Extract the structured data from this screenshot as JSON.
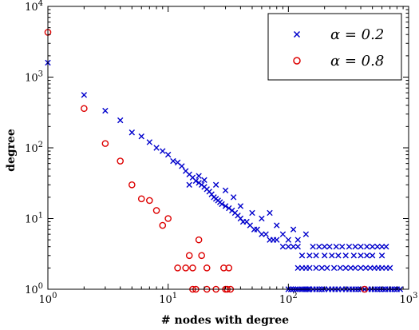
{
  "chart_data": {
    "type": "scatter",
    "title": "",
    "xlabel": "# nodes with degree",
    "ylabel": "degree",
    "xscale": "log",
    "yscale": "log",
    "xlim": [
      1,
      1000
    ],
    "ylim": [
      1,
      10000
    ],
    "grid": false,
    "legend_position": "top-right",
    "x_ticks": [
      {
        "value": 1,
        "base": "10",
        "exp": "0"
      },
      {
        "value": 10,
        "base": "10",
        "exp": "1"
      },
      {
        "value": 100,
        "base": "10",
        "exp": "2"
      },
      {
        "value": 1000,
        "base": "10",
        "exp": "3"
      }
    ],
    "y_ticks": [
      {
        "value": 1,
        "base": "10",
        "exp": "0"
      },
      {
        "value": 10,
        "base": "10",
        "exp": "1"
      },
      {
        "value": 100,
        "base": "10",
        "exp": "2"
      },
      {
        "value": 1000,
        "base": "10",
        "exp": "3"
      },
      {
        "value": 10000,
        "base": "10",
        "exp": "4"
      }
    ],
    "series": [
      {
        "name": "α = 0.2",
        "marker": "x",
        "color": "#0000cc",
        "points": [
          [
            1,
            1600
          ],
          [
            2,
            560
          ],
          [
            3,
            335
          ],
          [
            4,
            245
          ],
          [
            5,
            165
          ],
          [
            6,
            145
          ],
          [
            7,
            120
          ],
          [
            8,
            100
          ],
          [
            9,
            90
          ],
          [
            10,
            80
          ],
          [
            11,
            65
          ],
          [
            12,
            62
          ],
          [
            13,
            55
          ],
          [
            14,
            47
          ],
          [
            15,
            42
          ],
          [
            16,
            38
          ],
          [
            17,
            34
          ],
          [
            18,
            32
          ],
          [
            19,
            30
          ],
          [
            20,
            28
          ],
          [
            21,
            26
          ],
          [
            22,
            24
          ],
          [
            23,
            22
          ],
          [
            24,
            20
          ],
          [
            25,
            19
          ],
          [
            26,
            18
          ],
          [
            27,
            17
          ],
          [
            28,
            16
          ],
          [
            30,
            15
          ],
          [
            32,
            14
          ],
          [
            34,
            13
          ],
          [
            36,
            12
          ],
          [
            38,
            11
          ],
          [
            40,
            10
          ],
          [
            42,
            9
          ],
          [
            45,
            9
          ],
          [
            48,
            8
          ],
          [
            52,
            7
          ],
          [
            55,
            7
          ],
          [
            60,
            6
          ],
          [
            65,
            6
          ],
          [
            70,
            5
          ],
          [
            75,
            5
          ],
          [
            80,
            5
          ],
          [
            90,
            4
          ],
          [
            100,
            4
          ],
          [
            110,
            4
          ],
          [
            120,
            4
          ],
          [
            130,
            3
          ],
          [
            150,
            3
          ],
          [
            170,
            3
          ],
          [
            200,
            3
          ],
          [
            230,
            3
          ],
          [
            260,
            3
          ],
          [
            300,
            3
          ],
          [
            350,
            3
          ],
          [
            400,
            3
          ],
          [
            450,
            3
          ],
          [
            500,
            3
          ],
          [
            600,
            3
          ],
          [
            15,
            30
          ],
          [
            18,
            40
          ],
          [
            20,
            35
          ],
          [
            25,
            30
          ],
          [
            30,
            25
          ],
          [
            35,
            20
          ],
          [
            40,
            15
          ],
          [
            50,
            12
          ],
          [
            60,
            10
          ],
          [
            70,
            12
          ],
          [
            80,
            8
          ],
          [
            90,
            6
          ],
          [
            100,
            5
          ],
          [
            110,
            7
          ],
          [
            120,
            5
          ],
          [
            140,
            6
          ],
          [
            160,
            4
          ],
          [
            180,
            4
          ],
          [
            200,
            4
          ],
          [
            220,
            4
          ],
          [
            250,
            4
          ],
          [
            280,
            4
          ],
          [
            320,
            4
          ],
          [
            360,
            4
          ],
          [
            400,
            4
          ],
          [
            450,
            4
          ],
          [
            500,
            4
          ],
          [
            550,
            4
          ],
          [
            600,
            4
          ],
          [
            650,
            4
          ],
          [
            120,
            2
          ],
          [
            130,
            2
          ],
          [
            140,
            2
          ],
          [
            150,
            2
          ],
          [
            170,
            2
          ],
          [
            190,
            2
          ],
          [
            210,
            2
          ],
          [
            240,
            2
          ],
          [
            270,
            2
          ],
          [
            300,
            2
          ],
          [
            330,
            2
          ],
          [
            360,
            2
          ],
          [
            400,
            2
          ],
          [
            440,
            2
          ],
          [
            480,
            2
          ],
          [
            520,
            2
          ],
          [
            560,
            2
          ],
          [
            600,
            2
          ],
          [
            650,
            2
          ],
          [
            700,
            2
          ],
          [
            100,
            1
          ],
          [
            105,
            1
          ],
          [
            110,
            1
          ],
          [
            115,
            1
          ],
          [
            120,
            1
          ],
          [
            125,
            1
          ],
          [
            130,
            1
          ],
          [
            135,
            1
          ],
          [
            140,
            1
          ],
          [
            145,
            1
          ],
          [
            150,
            1
          ],
          [
            160,
            1
          ],
          [
            170,
            1
          ],
          [
            180,
            1
          ],
          [
            190,
            1
          ],
          [
            200,
            1
          ],
          [
            215,
            1
          ],
          [
            230,
            1
          ],
          [
            245,
            1
          ],
          [
            260,
            1
          ],
          [
            280,
            1
          ],
          [
            300,
            1
          ],
          [
            320,
            1
          ],
          [
            340,
            1
          ],
          [
            360,
            1
          ],
          [
            380,
            1
          ],
          [
            400,
            1
          ],
          [
            430,
            1
          ],
          [
            460,
            1
          ],
          [
            490,
            1
          ],
          [
            520,
            1
          ],
          [
            550,
            1
          ],
          [
            580,
            1
          ],
          [
            610,
            1
          ],
          [
            640,
            1
          ],
          [
            680,
            1
          ],
          [
            720,
            1
          ],
          [
            760,
            1
          ],
          [
            800,
            1
          ],
          [
            850,
            1
          ]
        ]
      },
      {
        "name": "α = 0.8",
        "marker": "o",
        "color": "#dd0000",
        "points": [
          [
            1,
            4300
          ],
          [
            2,
            360
          ],
          [
            3,
            115
          ],
          [
            4,
            65
          ],
          [
            5,
            30
          ],
          [
            6,
            19
          ],
          [
            7,
            18
          ],
          [
            8,
            13
          ],
          [
            9,
            8
          ],
          [
            10,
            10
          ],
          [
            14,
            2
          ],
          [
            15,
            3
          ],
          [
            16,
            2
          ],
          [
            16,
            1
          ],
          [
            17,
            1
          ],
          [
            19,
            3
          ],
          [
            21,
            2
          ],
          [
            21,
            1
          ],
          [
            25,
            1
          ],
          [
            29,
            2
          ],
          [
            30,
            1
          ],
          [
            31,
            1
          ],
          [
            32,
            2
          ],
          [
            33,
            1
          ],
          [
            18,
            5
          ],
          [
            12,
            2
          ],
          [
            430,
            1
          ]
        ]
      }
    ]
  }
}
